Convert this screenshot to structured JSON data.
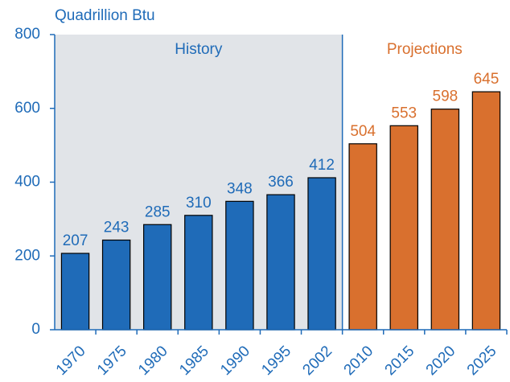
{
  "chart_data": {
    "type": "bar",
    "y_label": "Quadrillion Btu",
    "categories": [
      "1970",
      "1975",
      "1980",
      "1985",
      "1990",
      "1995",
      "2002",
      "2010",
      "2015",
      "2020",
      "2025"
    ],
    "series": [
      {
        "name": "History",
        "color": "#1f6bb8",
        "values": [
          207,
          243,
          285,
          310,
          348,
          366,
          412,
          null,
          null,
          null,
          null
        ]
      },
      {
        "name": "Projections",
        "color": "#d9702e",
        "values": [
          null,
          null,
          null,
          null,
          null,
          null,
          null,
          504,
          553,
          598,
          645
        ]
      }
    ],
    "ylim": [
      0,
      800
    ],
    "yticks": [
      0,
      200,
      400,
      600,
      800
    ],
    "grid": false,
    "shade": "#e1e4e8",
    "axis_color": "#1f6bb8"
  }
}
